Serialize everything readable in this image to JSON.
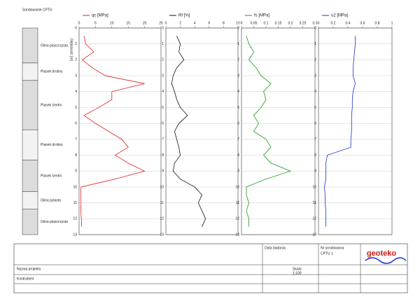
{
  "header": {
    "title": "Sondowanie CPTU",
    "depth_label": "Głębokość [m]"
  },
  "layers": [
    {
      "top": 0,
      "bottom": 2.2,
      "label": "Glina piaszczysta"
    },
    {
      "top": 2.2,
      "bottom": 3.3,
      "label": "Piasek drobny"
    },
    {
      "top": 3.3,
      "bottom": 6.4,
      "label": "Piasek średni"
    },
    {
      "top": 6.4,
      "bottom": 8.3,
      "label": "Piasek drobny"
    },
    {
      "top": 8.3,
      "bottom": 10.3,
      "label": "Piasek średni"
    },
    {
      "top": 10.3,
      "bottom": 11.4,
      "label": "Glina pylasta"
    },
    {
      "top": 11.4,
      "bottom": 13,
      "label": "Glina piaszczysta"
    }
  ],
  "chart_data": [
    {
      "type": "line",
      "title": "qc [MPa]",
      "color": "#e02020",
      "y": [
        0.5,
        1,
        1.5,
        2,
        2.5,
        3,
        3.5,
        4,
        4.5,
        5,
        5.5,
        6,
        6.5,
        7,
        7.5,
        8,
        8.5,
        9,
        9.5,
        10,
        10.5,
        11,
        11.5,
        12,
        12.5
      ],
      "values": [
        1.5,
        2,
        4.5,
        1,
        4,
        8,
        20,
        10,
        10,
        6,
        1.5,
        5,
        9,
        13,
        15,
        11,
        15,
        20,
        11,
        0.6,
        0.5,
        0.6,
        0.5,
        0.7,
        0.8
      ],
      "xlim": [
        0,
        25
      ],
      "xticks": [
        0,
        5,
        10,
        15,
        20,
        25
      ],
      "ylim": [
        0,
        13
      ],
      "yticks": [
        0,
        1,
        2,
        3,
        4,
        5,
        6,
        7,
        8,
        9,
        10,
        11,
        12,
        13
      ]
    },
    {
      "type": "line",
      "title": "Rf [%]",
      "color": "#111111",
      "y": [
        0.5,
        1,
        1.5,
        2,
        2.5,
        3,
        3.5,
        4,
        4.5,
        5,
        5.5,
        6,
        6.5,
        7,
        7.5,
        8,
        8.5,
        9,
        9.5,
        10,
        10.5,
        11,
        11.5,
        12,
        12.5
      ],
      "values": [
        1.5,
        2,
        1.8,
        2.5,
        1.5,
        1,
        0.8,
        1.2,
        1.5,
        2,
        3,
        1.8,
        1.2,
        1.5,
        1.8,
        2,
        1.2,
        1,
        2,
        4,
        5,
        4.5,
        5,
        5.5,
        5
      ],
      "xlim": [
        0,
        10
      ],
      "xticks": [
        0,
        2,
        4,
        6,
        8,
        10
      ],
      "ylim": [
        0,
        13
      ],
      "yticks": [
        0,
        1,
        2,
        3,
        4,
        5,
        6,
        7,
        8,
        9,
        10,
        11,
        12,
        13
      ]
    },
    {
      "type": "line",
      "title": "fs [MPa]",
      "color": "#1a9a1a",
      "y": [
        0.5,
        1,
        1.5,
        2,
        2.5,
        3,
        3.5,
        4,
        4.5,
        5,
        5.5,
        6,
        6.5,
        7,
        7.5,
        8,
        8.5,
        9,
        9.5,
        10,
        10.5,
        11,
        11.5,
        12,
        12.5
      ],
      "values": [
        0.02,
        0.03,
        0.05,
        0.03,
        0.06,
        0.08,
        0.12,
        0.09,
        0.1,
        0.08,
        0.05,
        0.07,
        0.05,
        0.1,
        0.12,
        0.09,
        0.12,
        0.2,
        0.1,
        0.02,
        0.02,
        0.03,
        0.02,
        0.03,
        0.03
      ],
      "xlim": [
        0,
        0.3
      ],
      "xticks": [
        0,
        0.05,
        0.1,
        0.15,
        0.2,
        0.25,
        0.3
      ],
      "ylim": [
        0,
        13
      ],
      "yticks": [
        0,
        1,
        2,
        3,
        4,
        5,
        6,
        7,
        8,
        9,
        10,
        11,
        12,
        13
      ]
    },
    {
      "type": "line",
      "title": "u2 [MPa]",
      "color": "#1a2fd0",
      "y": [
        0.5,
        1,
        1.5,
        2,
        2.5,
        3,
        3.5,
        4,
        4.5,
        5,
        5.5,
        6,
        6.5,
        7,
        7.5,
        8,
        8.5,
        9,
        9.5,
        10,
        10.5,
        11,
        11.5,
        12,
        12.5
      ],
      "values": [
        0.5,
        0.5,
        0.49,
        0.48,
        0.47,
        0.47,
        0.5,
        0.47,
        0.46,
        0.46,
        0.45,
        0.45,
        0.45,
        0.44,
        0.44,
        0.12,
        0.1,
        0.1,
        0.1,
        0.08,
        0.09,
        0.09,
        0.1,
        0.1,
        0.1
      ],
      "xlim": [
        0,
        1
      ],
      "xticks": [
        0,
        0.2,
        0.4,
        0.6,
        0.8,
        1
      ],
      "ylim": [
        0,
        13
      ],
      "yticks": [
        0,
        1,
        2,
        3,
        4,
        5,
        6,
        7,
        8,
        9,
        10,
        11,
        12,
        13
      ]
    }
  ],
  "footer": {
    "project_label": "Nazwa projektu",
    "client_label": "Kontrahent",
    "date_label": "Data badania",
    "scale_label": "Skala",
    "scale": "1:100",
    "sounding_label": "Nr sondowania",
    "sounding": "CPTU 1",
    "logo": "geoteko"
  }
}
